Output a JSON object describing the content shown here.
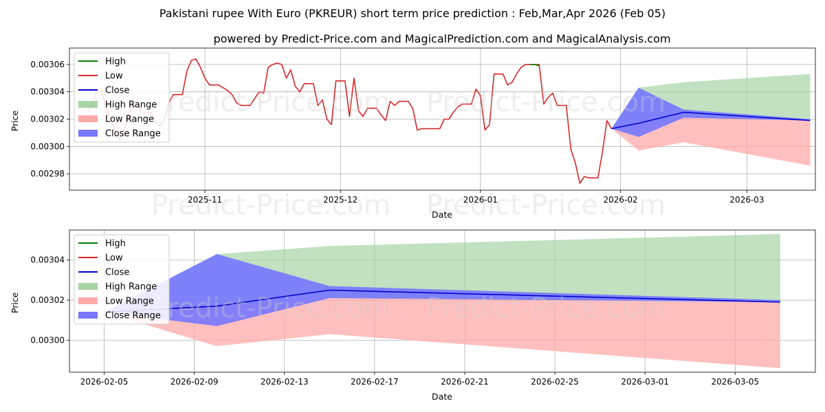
{
  "title": "Pakistani rupee With Euro (PKREUR) short term price prediction : Feb,Mar,Apr 2026 (Feb 05)",
  "subtitle": "powered by Predict-Price.com and MagicalPrediction.com and MagicalAnalysis.com",
  "watermark": "Predict-Price.com",
  "colors": {
    "high": "#008000",
    "low": "#d62728",
    "close": "#0000cc",
    "high_range": "#a6d4a6",
    "low_range": "#ffaaaa",
    "close_range": "#7777ff"
  },
  "legend": [
    "High",
    "Low",
    "Close",
    "High Range",
    "Low Range",
    "Close Range"
  ],
  "chart_data": [
    {
      "type": "line",
      "title": "Pakistani rupee With Euro (PKREUR) short term price prediction : Feb,Mar,Apr 2026 (Feb 05)",
      "xlabel": "Date",
      "ylabel": "Price",
      "x_ticks": [
        "2025-11",
        "2025-12",
        "2026-01",
        "2026-02",
        "2026-03"
      ],
      "y_ticks": [
        "0.00298",
        "0.00300",
        "0.00302",
        "0.00304",
        "0.00306"
      ],
      "ylim": [
        0.002968,
        0.003072
      ],
      "grid": true,
      "legend_position": "top-left",
      "history_low": [
        [
          -26,
          0.003024
        ],
        [
          -25,
          0.00303
        ],
        [
          -24,
          0.00304
        ],
        [
          -23,
          0.003042
        ],
        [
          -22,
          0.00303
        ],
        [
          -21,
          0.00302
        ],
        [
          -20,
          0.003012
        ],
        [
          -19,
          0.003005
        ],
        [
          -18,
          0.00301
        ],
        [
          -17,
          0.003022
        ],
        [
          -16,
          0.00303
        ],
        [
          -15,
          0.003034
        ],
        [
          -14,
          0.003025
        ],
        [
          -13,
          0.003025
        ],
        [
          -12,
          0.003025
        ],
        [
          -11,
          0.003018
        ],
        [
          -10,
          0.003015
        ],
        [
          -9,
          0.003019
        ],
        [
          -8,
          0.003032
        ],
        [
          -7,
          0.003038
        ],
        [
          -6,
          0.003038
        ],
        [
          -5,
          0.003038
        ],
        [
          -4,
          0.003055
        ],
        [
          -3,
          0.003063
        ],
        [
          -2,
          0.003064
        ],
        [
          -1,
          0.003058
        ],
        [
          0,
          0.00305
        ],
        [
          1,
          0.003045
        ],
        [
          2,
          0.003045
        ],
        [
          3,
          0.003045
        ],
        [
          4,
          0.003043
        ],
        [
          5,
          0.003041
        ],
        [
          6,
          0.003038
        ],
        [
          7,
          0.003032
        ],
        [
          8,
          0.00303
        ],
        [
          9,
          0.00303
        ],
        [
          10,
          0.00303
        ],
        [
          11,
          0.003035
        ],
        [
          12,
          0.00304
        ],
        [
          13,
          0.003039
        ],
        [
          14,
          0.003058
        ],
        [
          15,
          0.00306
        ],
        [
          16,
          0.003061
        ],
        [
          17,
          0.00306
        ],
        [
          18,
          0.00305
        ],
        [
          19,
          0.003056
        ],
        [
          20,
          0.003044
        ],
        [
          21,
          0.00304
        ],
        [
          22,
          0.003046
        ],
        [
          23,
          0.003046
        ],
        [
          24,
          0.003046
        ],
        [
          25,
          0.00303
        ],
        [
          26,
          0.003034
        ],
        [
          27,
          0.00302
        ],
        [
          28,
          0.003016
        ],
        [
          29,
          0.003048
        ],
        [
          30,
          0.003048
        ],
        [
          31,
          0.003048
        ],
        [
          32,
          0.003022
        ],
        [
          33,
          0.00305
        ],
        [
          34,
          0.003026
        ],
        [
          35,
          0.003022
        ],
        [
          36,
          0.003028
        ],
        [
          37,
          0.003028
        ],
        [
          38,
          0.003028
        ],
        [
          39,
          0.003023
        ],
        [
          40,
          0.003019
        ],
        [
          41,
          0.003033
        ],
        [
          42,
          0.00303
        ],
        [
          43,
          0.003033
        ],
        [
          44,
          0.003033
        ],
        [
          45,
          0.003033
        ],
        [
          46,
          0.003028
        ],
        [
          47,
          0.003012
        ],
        [
          48,
          0.003013
        ],
        [
          49,
          0.003013
        ],
        [
          50,
          0.003013
        ],
        [
          51,
          0.003013
        ],
        [
          52,
          0.003013
        ],
        [
          53,
          0.00302
        ],
        [
          54,
          0.00302
        ],
        [
          55,
          0.003025
        ],
        [
          56,
          0.003029
        ],
        [
          57,
          0.003031
        ],
        [
          58,
          0.003031
        ],
        [
          59,
          0.003031
        ],
        [
          60,
          0.003042
        ],
        [
          61,
          0.003037
        ],
        [
          62,
          0.003012
        ],
        [
          63,
          0.003016
        ],
        [
          64,
          0.003053
        ],
        [
          65,
          0.003053
        ],
        [
          66,
          0.003053
        ],
        [
          67,
          0.003045
        ],
        [
          68,
          0.003047
        ],
        [
          69,
          0.003053
        ],
        [
          70,
          0.003058
        ],
        [
          71,
          0.00306
        ],
        [
          72,
          0.00306
        ],
        [
          73,
          0.00306
        ],
        [
          74,
          0.00306
        ],
        [
          75,
          0.003031
        ],
        [
          76,
          0.003036
        ],
        [
          77,
          0.003039
        ],
        [
          78,
          0.00303
        ],
        [
          79,
          0.00303
        ],
        [
          80,
          0.00303
        ],
        [
          81,
          0.002998
        ],
        [
          82,
          0.002988
        ],
        [
          83,
          0.002973
        ],
        [
          84,
          0.002978
        ],
        [
          85,
          0.002977
        ],
        [
          86,
          0.002977
        ],
        [
          87,
          0.002977
        ],
        [
          88,
          0.002996
        ],
        [
          89,
          0.003019
        ],
        [
          90,
          0.003013
        ]
      ],
      "history_high_tail": [
        [
          72,
          0.00306
        ],
        [
          73,
          0.00306
        ],
        [
          74,
          0.003059
        ]
      ],
      "forecast": {
        "x": [
          90,
          96,
          106,
          134
        ],
        "close": [
          0.003013,
          0.003017,
          0.003025,
          0.003019
        ],
        "close_upper": [
          0.003013,
          0.003043,
          0.003027,
          0.00302
        ],
        "close_lower": [
          0.003013,
          0.003007,
          0.003021,
          0.003019
        ],
        "high_upper": [
          0.003013,
          0.003043,
          0.003047,
          0.003053
        ],
        "high_lower": [
          0.003013,
          0.003013,
          0.003021,
          0.003019
        ],
        "low_upper": [
          0.003013,
          0.003017,
          0.003021,
          0.003019
        ],
        "low_lower": [
          0.003013,
          0.002997,
          0.003003,
          0.002986
        ]
      }
    },
    {
      "type": "line",
      "xlabel": "Date",
      "ylabel": "Price",
      "x_ticks": [
        "2026-02-05",
        "2026-02-09",
        "2026-02-13",
        "2026-02-17",
        "2026-02-21",
        "2026-02-25",
        "2026-03-01",
        "2026-03-05"
      ],
      "y_ticks": [
        "0.00300",
        "0.00302",
        "0.00304"
      ],
      "ylim": [
        0.002984,
        0.003055
      ],
      "grid": true,
      "legend_position": "top-left",
      "forecast": {
        "x": [
          0,
          5,
          10,
          30
        ],
        "close": [
          0.003014,
          0.003017,
          0.003025,
          0.003019
        ],
        "close_upper": [
          0.003014,
          0.003043,
          0.003027,
          0.00302
        ],
        "close_lower": [
          0.003014,
          0.003007,
          0.003021,
          0.003019
        ],
        "high_upper": [
          0.003014,
          0.003043,
          0.003047,
          0.003053
        ],
        "high_lower": [
          0.003014,
          0.003014,
          0.003021,
          0.003019
        ],
        "low_upper": [
          0.003014,
          0.003017,
          0.003021,
          0.003019
        ],
        "low_lower": [
          0.003014,
          0.002997,
          0.003003,
          0.002986
        ]
      }
    }
  ]
}
